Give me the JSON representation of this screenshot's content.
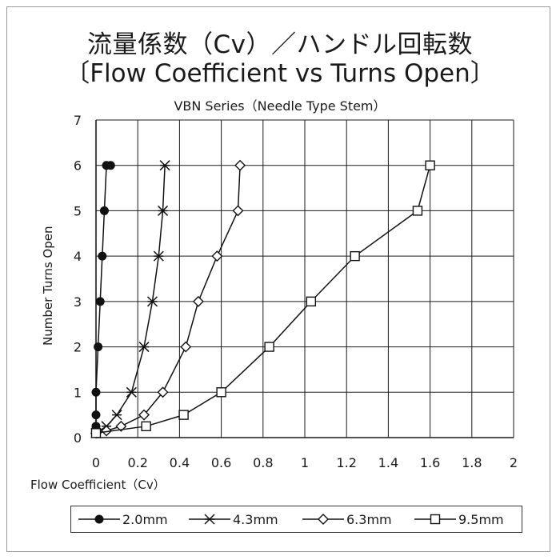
{
  "chart_data": {
    "type": "line",
    "title": "流量係数（Cv）／ハンドル回転数",
    "title_en": "〔Flow Coefficient vs Turns Open〕",
    "subtitle": "VBN Series（Needle Type Stem）",
    "xlabel": "Flow Coefficient（Cv）",
    "ylabel": "Number Turns Open",
    "xlim": [
      0,
      2
    ],
    "ylim": [
      0,
      7
    ],
    "x_ticks": [
      "0",
      "0.2",
      "0.4",
      "0.6",
      "0.8",
      "1",
      "1.2",
      "1.4",
      "1.6",
      "1.8",
      "2"
    ],
    "y_ticks": [
      "0",
      "1",
      "2",
      "3",
      "4",
      "5",
      "6",
      "7"
    ],
    "grid": true,
    "legend_position": "bottom",
    "series": [
      {
        "name": "2.0mm",
        "marker": "filled-circle",
        "x": [
          0.0,
          0.0,
          0.0,
          0.0,
          0.01,
          0.02,
          0.03,
          0.04,
          0.05,
          0.07
        ],
        "y": [
          0.1,
          0.25,
          0.5,
          1,
          2,
          3,
          4,
          5,
          6,
          6
        ]
      },
      {
        "name": "4.3mm",
        "marker": "asterisk",
        "x": [
          0.0,
          0.05,
          0.1,
          0.17,
          0.23,
          0.27,
          0.3,
          0.32,
          0.33
        ],
        "y": [
          0.1,
          0.25,
          0.5,
          1,
          2,
          3,
          4,
          5,
          6
        ]
      },
      {
        "name": "6.3mm",
        "marker": "open-diamond",
        "x": [
          0.0,
          0.05,
          0.12,
          0.23,
          0.32,
          0.43,
          0.49,
          0.58,
          0.68,
          0.69
        ],
        "y": [
          0.1,
          0.15,
          0.25,
          0.5,
          1,
          2,
          3,
          4,
          5,
          6
        ]
      },
      {
        "name": "9.5mm",
        "marker": "open-square",
        "x": [
          0.0,
          0.24,
          0.42,
          0.6,
          0.83,
          1.03,
          1.24,
          1.54,
          1.6
        ],
        "y": [
          0.1,
          0.25,
          0.5,
          1,
          2,
          3,
          4,
          5,
          6
        ]
      }
    ]
  }
}
